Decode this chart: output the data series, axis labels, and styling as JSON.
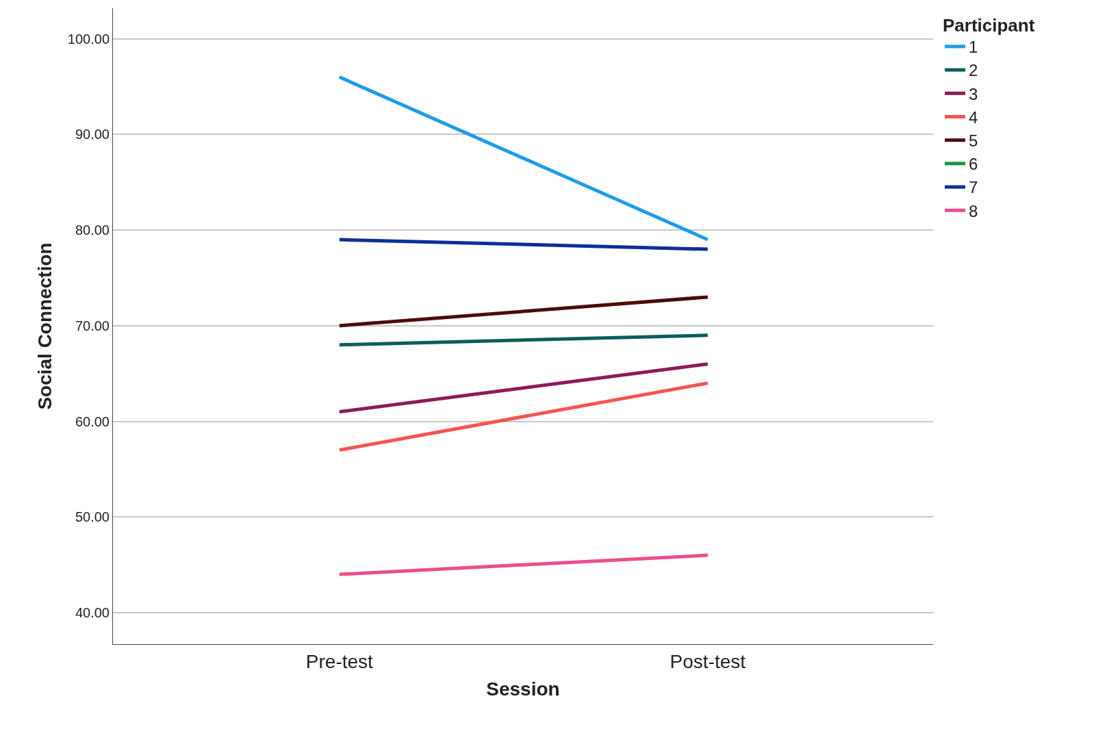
{
  "chart_data": {
    "type": "line",
    "xlabel": "Session",
    "ylabel": "Social Connection",
    "legend_title": "Participant",
    "categories": [
      "Pre-test",
      "Post-test"
    ],
    "series": [
      {
        "name": "1",
        "color": "#1f9ce8",
        "values": [
          96,
          79
        ]
      },
      {
        "name": "2",
        "color": "#0a5e5b",
        "values": [
          68,
          69
        ]
      },
      {
        "name": "3",
        "color": "#8e1a5a",
        "values": [
          61,
          66
        ]
      },
      {
        "name": "4",
        "color": "#f7534f",
        "values": [
          57,
          64
        ]
      },
      {
        "name": "5",
        "color": "#4d0a0a",
        "values": [
          70,
          73
        ]
      },
      {
        "name": "6",
        "color": "#1f8f3a",
        "values": [
          null,
          null
        ]
      },
      {
        "name": "7",
        "color": "#0c2e9a",
        "values": [
          79,
          78
        ]
      },
      {
        "name": "8",
        "color": "#ea4f8c",
        "values": [
          44,
          46
        ]
      }
    ],
    "ylim": [
      36.7,
      103.2
    ],
    "yticks": [
      {
        "value": 40,
        "label": "40.00"
      },
      {
        "value": 50,
        "label": "50.00"
      },
      {
        "value": 60,
        "label": "60.00"
      },
      {
        "value": 70,
        "label": "70.00"
      },
      {
        "value": 80,
        "label": "80.00"
      },
      {
        "value": 90,
        "label": "90.00"
      },
      {
        "value": 100,
        "label": "100.00"
      }
    ],
    "grid": "y",
    "legend": "top right",
    "marker": "none",
    "line_style": "solid"
  }
}
